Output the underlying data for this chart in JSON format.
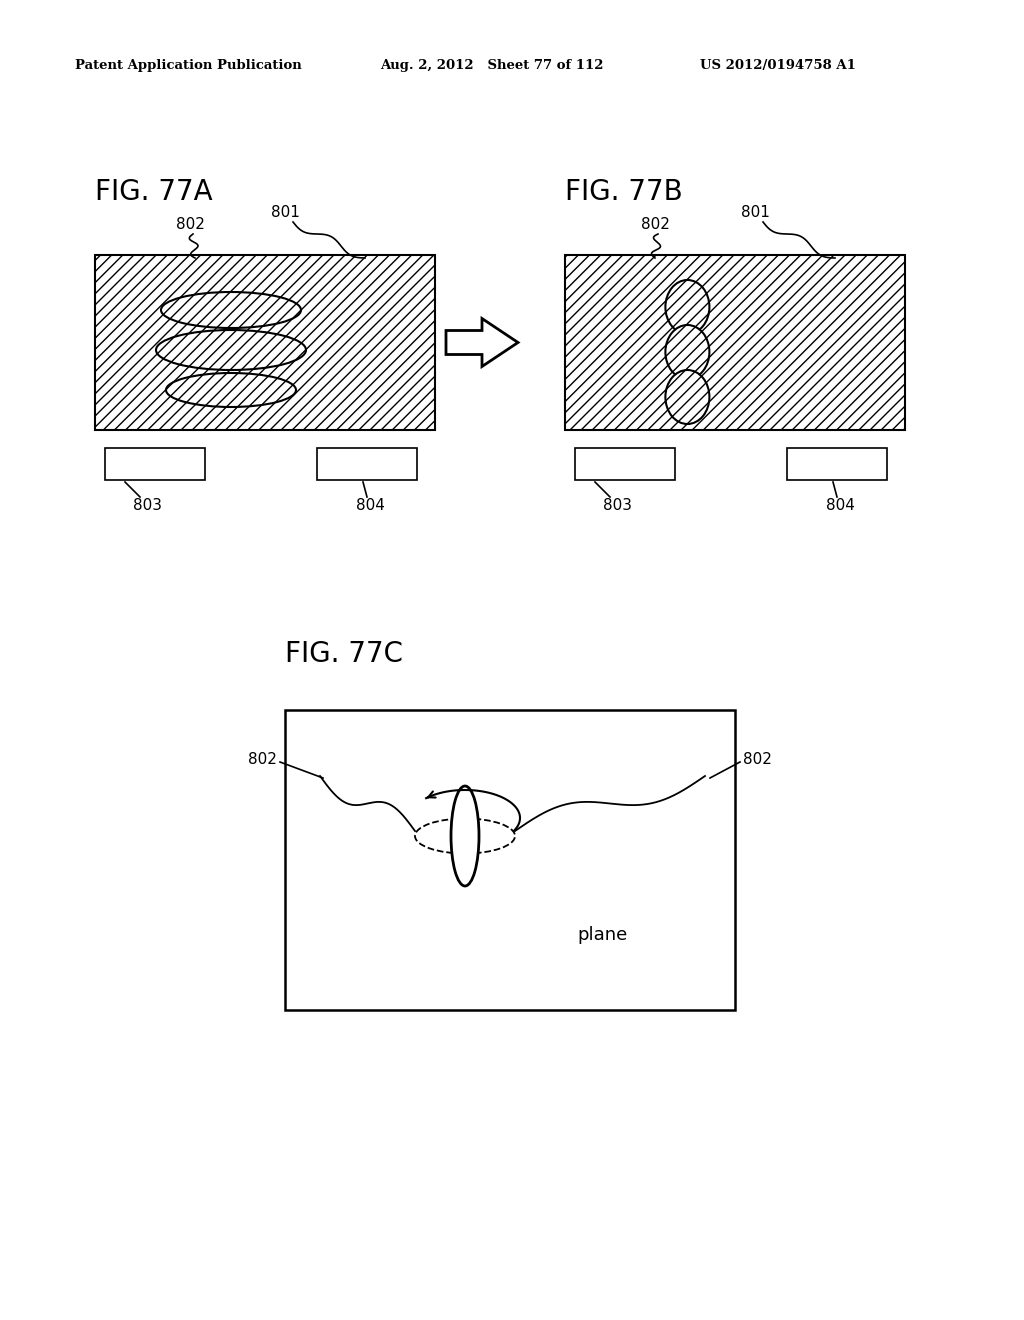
{
  "header_left": "Patent Application Publication",
  "header_mid": "Aug. 2, 2012   Sheet 77 of 112",
  "header_right": "US 2012/0194758 A1",
  "fig_77a_label": "FIG. 77A",
  "fig_77b_label": "FIG. 77B",
  "fig_77c_label": "FIG. 77C",
  "bg_color": "#ffffff",
  "fg_color": "#000000",
  "label_802": "802",
  "label_801": "801",
  "label_803": "803",
  "label_804": "804",
  "label_plane": "plane"
}
